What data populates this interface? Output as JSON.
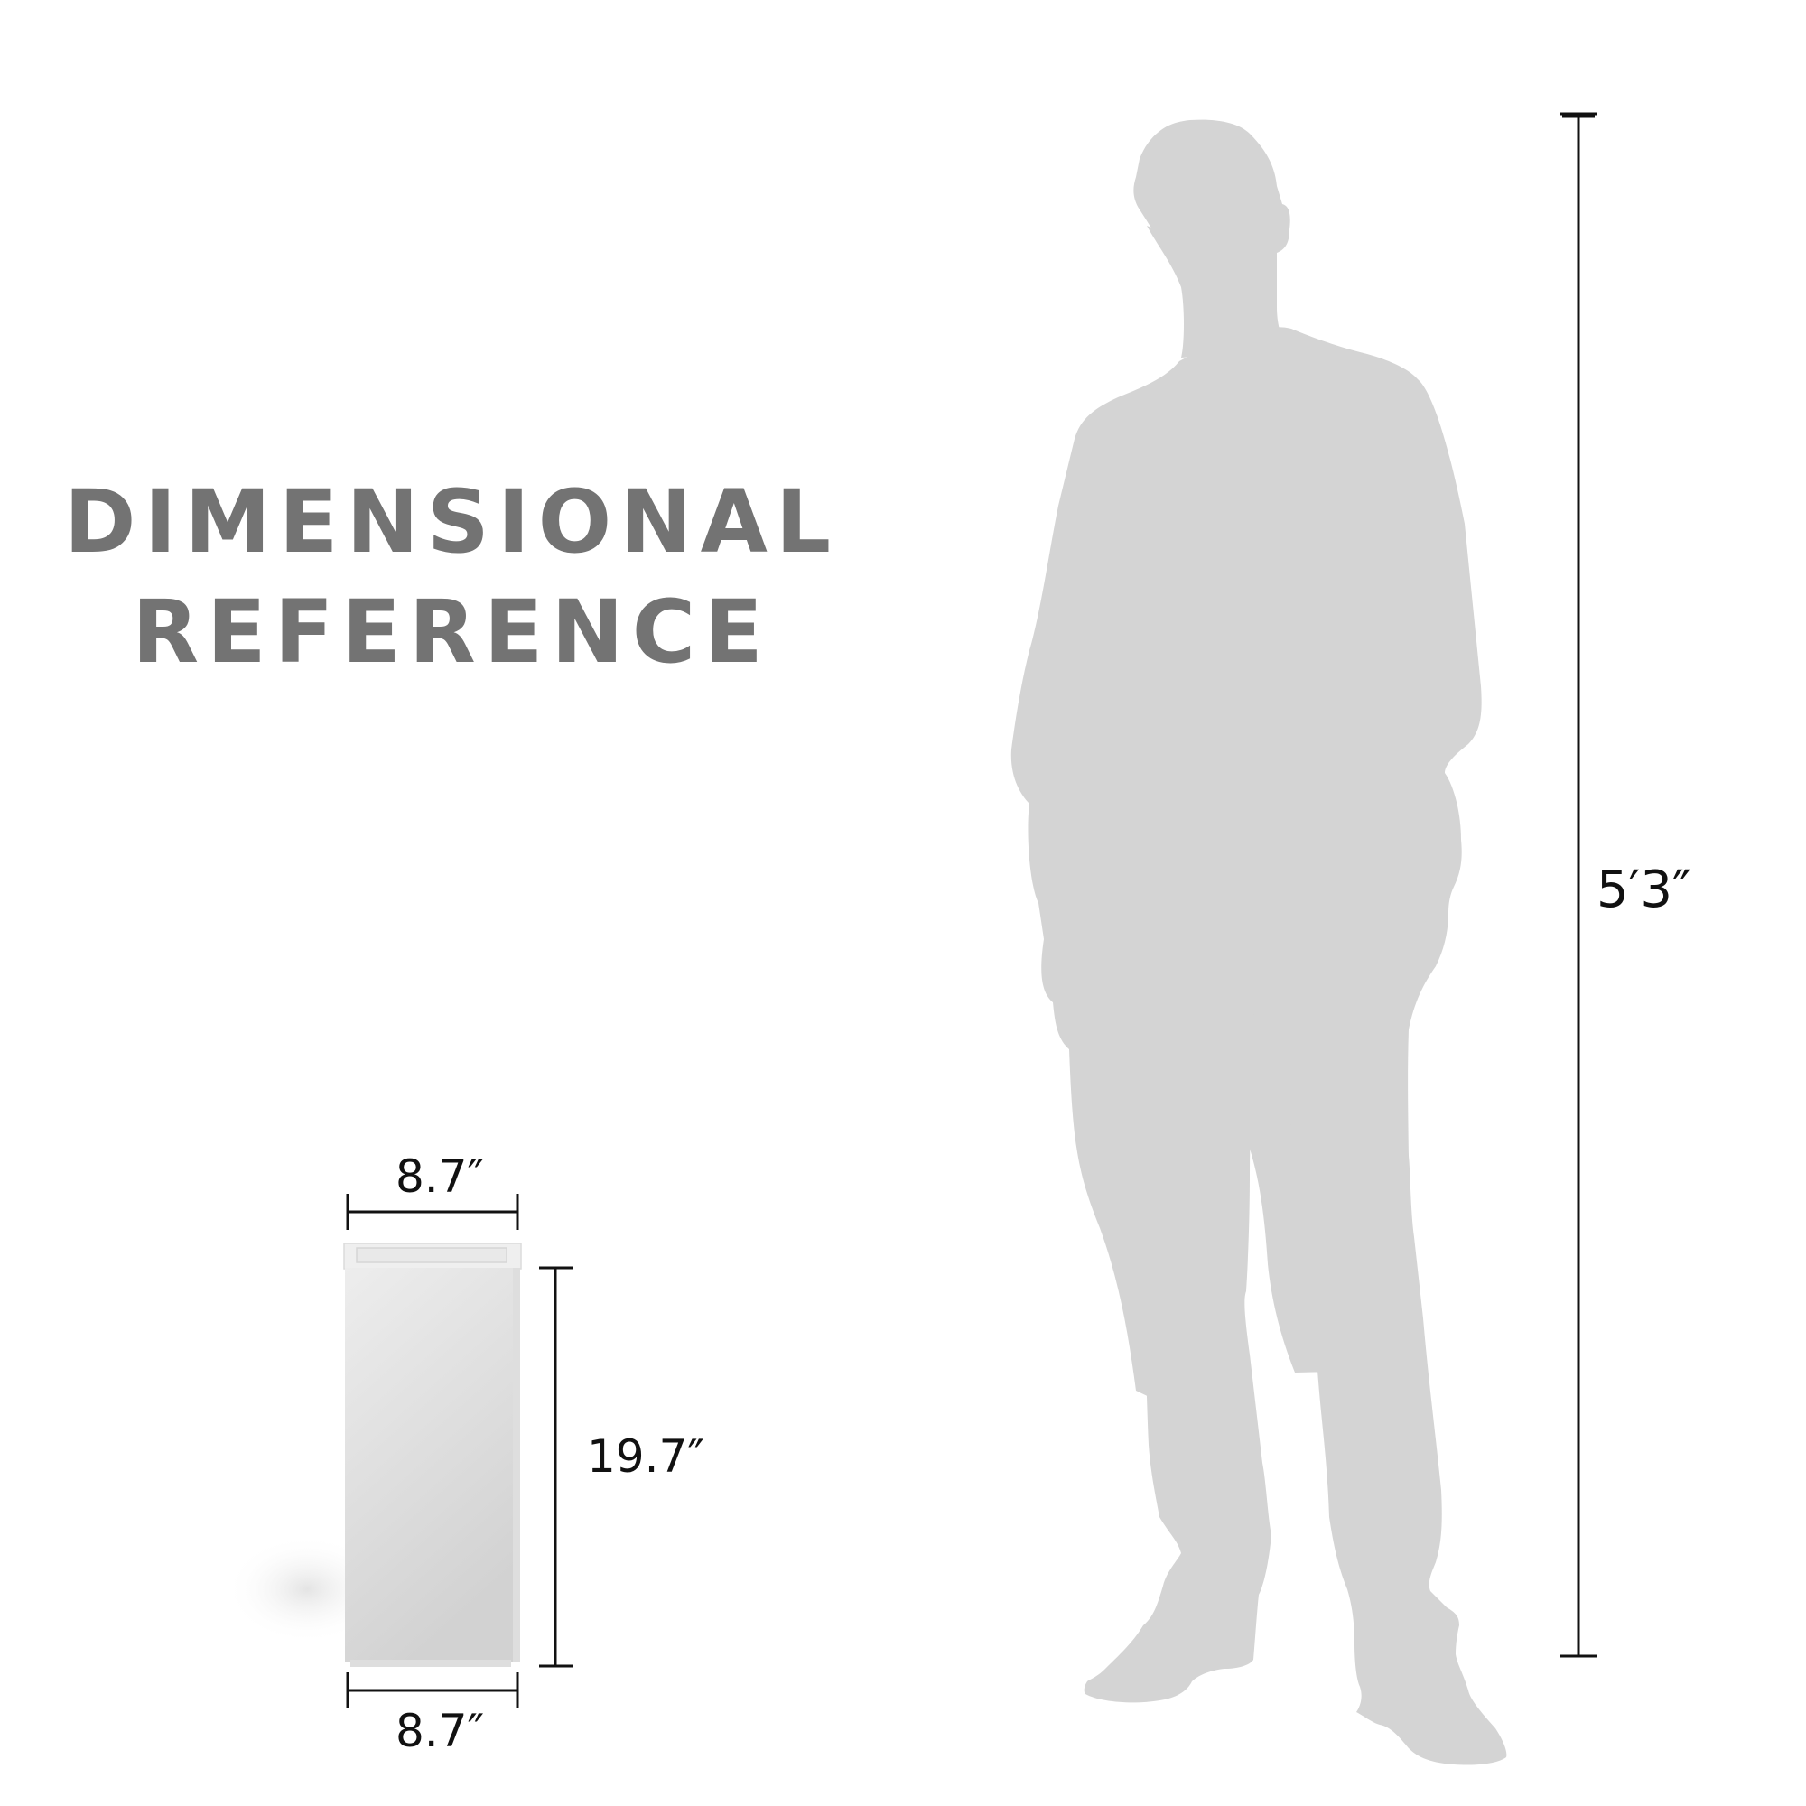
{
  "heading": {
    "line1": "DIMENSIONAL",
    "line2": "REFERENCE"
  },
  "product": {
    "top_width": "8.7″",
    "height": "19.7″",
    "bottom_width": "8.7″"
  },
  "person": {
    "height": "5′3″"
  },
  "colors": {
    "heading": "#737373",
    "silhouette": "#d4d4d4",
    "dimension_lines": "#111111",
    "planter": "#e6e6e6"
  }
}
